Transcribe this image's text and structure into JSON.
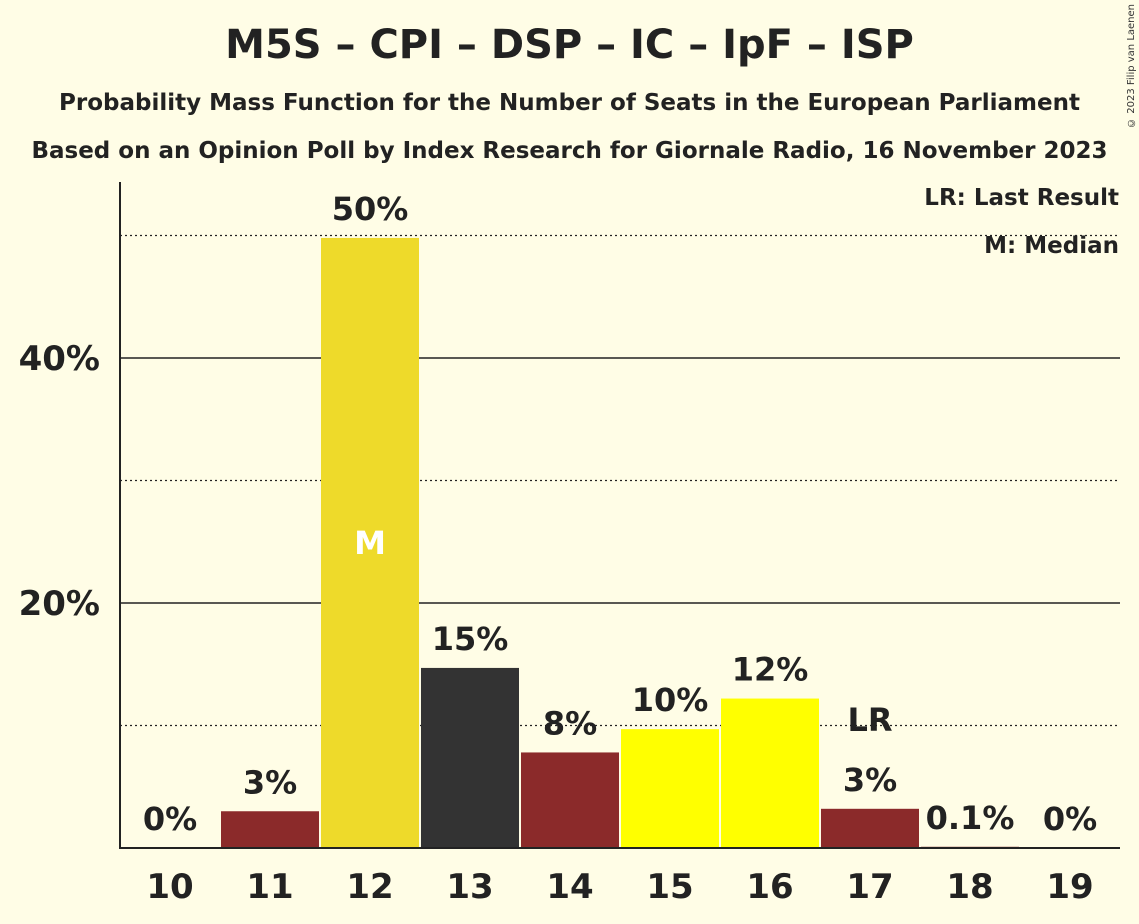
{
  "header": {
    "title": "M5S – CPI – DSP – IC – IpF – ISP",
    "subtitle": "Probability Mass Function for the Number of Seats in the European Parliament",
    "subtitle2": "Based on an Opinion Poll by Index Research for Giornale Radio, 16 November 2023",
    "copyright": "© 2023 Filip van Laenen"
  },
  "legend": {
    "last_result": "LR: Last Result",
    "median": "M: Median"
  },
  "chart_data": {
    "type": "bar",
    "title": "M5S – CPI – DSP – IC – IpF – ISP",
    "categories": [
      "10",
      "11",
      "12",
      "13",
      "14",
      "15",
      "16",
      "17",
      "18",
      "19"
    ],
    "values": [
      0,
      3.0,
      49.8,
      14.7,
      7.8,
      9.7,
      12.2,
      3.2,
      0.1,
      0
    ],
    "labels": [
      "0%",
      "3%",
      "50%",
      "15%",
      "8%",
      "10%",
      "12%",
      "3%",
      "0.1%",
      "0%"
    ],
    "colors": [
      "#8B2A2A",
      "#8B2A2A",
      "#EEDA2A",
      "#333333",
      "#8B2A2A",
      "#FFFF00",
      "#FFFF00",
      "#8B2A2A",
      "#8B2A2A",
      "#8B2A2A"
    ],
    "ylim": [
      0,
      54
    ],
    "yticks": [
      {
        "value": 20,
        "label": "20%"
      },
      {
        "value": 40,
        "label": "40%"
      }
    ],
    "dotted_lines": [
      10,
      30,
      50
    ],
    "median_category": "12",
    "median_label": "M",
    "last_result_category": "17",
    "last_result_label": "LR",
    "xlabel": "",
    "ylabel": ""
  }
}
